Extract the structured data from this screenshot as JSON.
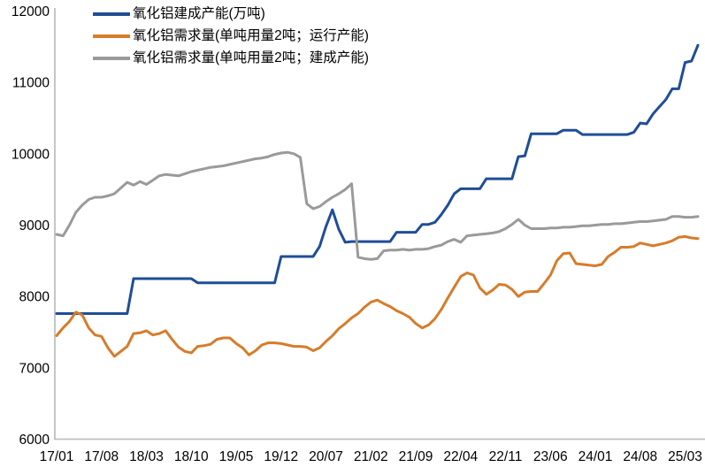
{
  "chart_data": {
    "type": "line",
    "title": "",
    "xlabel": "",
    "ylabel": "",
    "grid": false,
    "legend_position": "top-left",
    "background_color": "#FFFFFF",
    "axis_color": "#BFBFBF",
    "text_color": "#000000",
    "y_axis": {
      "min": 6000,
      "max": 12000,
      "step": 1000,
      "tick_labels": [
        "6000",
        "7000",
        "8000",
        "9000",
        "10000",
        "11000",
        "12000"
      ]
    },
    "x_tick_labels": [
      "17/01",
      "17/08",
      "18/03",
      "18/10",
      "19/05",
      "19/12",
      "20/07",
      "21/02",
      "21/09",
      "22/04",
      "22/11",
      "23/06",
      "24/01",
      "24/08",
      "25/03"
    ],
    "x": [
      "17/01",
      "17/02",
      "17/03",
      "17/04",
      "17/05",
      "17/06",
      "17/07",
      "17/08",
      "17/09",
      "17/10",
      "17/11",
      "17/12",
      "18/01",
      "18/02",
      "18/03",
      "18/04",
      "18/05",
      "18/06",
      "18/07",
      "18/08",
      "18/09",
      "18/10",
      "18/11",
      "18/12",
      "19/01",
      "19/02",
      "19/03",
      "19/04",
      "19/05",
      "19/06",
      "19/07",
      "19/08",
      "19/09",
      "19/10",
      "19/11",
      "19/12",
      "20/01",
      "20/02",
      "20/03",
      "20/04",
      "20/05",
      "20/06",
      "20/07",
      "20/08",
      "20/09",
      "20/10",
      "20/11",
      "20/12",
      "21/01",
      "21/02",
      "21/03",
      "21/04",
      "21/05",
      "21/06",
      "21/07",
      "21/08",
      "21/09",
      "21/10",
      "21/11",
      "21/12",
      "22/01",
      "22/02",
      "22/03",
      "22/04",
      "22/05",
      "22/06",
      "22/07",
      "22/08",
      "22/09",
      "22/10",
      "22/11",
      "22/12",
      "23/01",
      "23/02",
      "23/03",
      "23/04",
      "23/05",
      "23/06",
      "23/07",
      "23/08",
      "23/09",
      "23/10",
      "23/11",
      "23/12",
      "24/01",
      "24/02",
      "24/03",
      "24/04",
      "24/05",
      "24/06",
      "24/07",
      "24/08",
      "24/09",
      "24/10",
      "24/11",
      "24/12",
      "25/01",
      "25/02",
      "25/03",
      "25/04",
      "25/05"
    ],
    "series": [
      {
        "name": "氧化铝建成产能(万吨)",
        "color": "#1F4E96",
        "line_width": 3,
        "values": [
          7760,
          7760,
          7760,
          7760,
          7760,
          7760,
          7760,
          7760,
          7760,
          7760,
          7760,
          7760,
          8250,
          8250,
          8250,
          8250,
          8250,
          8250,
          8250,
          8250,
          8250,
          8250,
          8190,
          8190,
          8190,
          8190,
          8190,
          8190,
          8190,
          8190,
          8190,
          8190,
          8190,
          8190,
          8190,
          8560,
          8560,
          8560,
          8560,
          8560,
          8560,
          8700,
          8980,
          9215,
          8940,
          8760,
          8770,
          8770,
          8770,
          8770,
          8770,
          8770,
          8770,
          8900,
          8900,
          8900,
          8900,
          9010,
          9010,
          9040,
          9150,
          9280,
          9440,
          9510,
          9510,
          9510,
          9510,
          9650,
          9650,
          9650,
          9650,
          9650,
          9960,
          9970,
          10280,
          10280,
          10280,
          10280,
          10280,
          10330,
          10330,
          10330,
          10270,
          10270,
          10270,
          10270,
          10270,
          10270,
          10270,
          10270,
          10300,
          10430,
          10420,
          10560,
          10660,
          10760,
          10910,
          10910,
          11280,
          11300,
          11520
        ]
      },
      {
        "name": "氧化铝需求量(单吨用量2吨；运行产能)",
        "color": "#D67C2B",
        "line_width": 3,
        "values": [
          7450,
          7560,
          7650,
          7780,
          7740,
          7560,
          7460,
          7440,
          7280,
          7160,
          7230,
          7300,
          7480,
          7490,
          7520,
          7460,
          7480,
          7520,
          7400,
          7290,
          7230,
          7210,
          7300,
          7310,
          7330,
          7400,
          7420,
          7420,
          7340,
          7280,
          7180,
          7240,
          7320,
          7350,
          7350,
          7340,
          7320,
          7300,
          7300,
          7290,
          7240,
          7280,
          7370,
          7450,
          7550,
          7620,
          7700,
          7760,
          7850,
          7920,
          7950,
          7900,
          7860,
          7800,
          7760,
          7710,
          7620,
          7560,
          7600,
          7690,
          7820,
          7980,
          8130,
          8280,
          8330,
          8300,
          8120,
          8030,
          8090,
          8170,
          8160,
          8100,
          8000,
          8060,
          8070,
          8070,
          8180,
          8300,
          8500,
          8600,
          8610,
          8460,
          8450,
          8440,
          8430,
          8450,
          8560,
          8620,
          8690,
          8690,
          8700,
          8750,
          8730,
          8710,
          8730,
          8750,
          8780,
          8830,
          8840,
          8820,
          8810
        ]
      },
      {
        "name": "氧化铝需求量(单吨用量2吨；建成产能)",
        "color": "#9A9A9A",
        "line_width": 3,
        "values": [
          8870,
          8850,
          9000,
          9180,
          9280,
          9360,
          9390,
          9390,
          9410,
          9440,
          9520,
          9600,
          9560,
          9610,
          9570,
          9630,
          9690,
          9710,
          9700,
          9690,
          9720,
          9750,
          9770,
          9790,
          9810,
          9820,
          9830,
          9850,
          9870,
          9890,
          9910,
          9930,
          9940,
          9960,
          9990,
          10010,
          10020,
          10000,
          9950,
          9300,
          9230,
          9260,
          9330,
          9390,
          9440,
          9500,
          9580,
          8550,
          8530,
          8520,
          8530,
          8640,
          8650,
          8650,
          8660,
          8650,
          8660,
          8660,
          8670,
          8700,
          8720,
          8770,
          8800,
          8760,
          8850,
          8860,
          8870,
          8880,
          8890,
          8910,
          8950,
          9010,
          9080,
          9000,
          8950,
          8950,
          8950,
          8960,
          8960,
          8970,
          8970,
          8980,
          8990,
          8990,
          9000,
          9010,
          9010,
          9020,
          9020,
          9030,
          9040,
          9050,
          9050,
          9060,
          9070,
          9080,
          9120,
          9120,
          9110,
          9110,
          9120
        ]
      }
    ]
  }
}
